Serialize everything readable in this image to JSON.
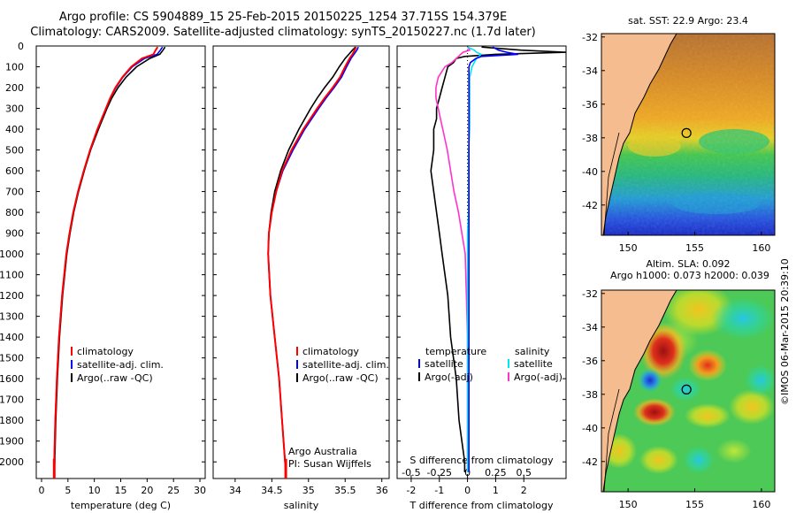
{
  "header": {
    "title_line1": "Argo profile: CS 5904889_15 25-Feb-2015 20150225_1254 37.715S 154.379E",
    "title_line2": "Climatology: CARS2009. Satellite-adjusted climatology: synTS_20150227.nc (1.7d later)"
  },
  "colors": {
    "climatology": "#ff0000",
    "satellite": "#0000ff",
    "argo": "#000000",
    "sat_sal": "#00e5ee",
    "argo_sal": "#ff33cc",
    "land": "#f5bc8f"
  },
  "chart_data": [
    {
      "type": "line",
      "name": "temperature-profile",
      "xlabel": "temperature (deg C)",
      "ylabel": "",
      "xlim": [
        -1,
        31
      ],
      "ylim": [
        2080,
        0
      ],
      "xticks": [
        "0",
        "5",
        "10",
        "15",
        "20",
        "25",
        "30"
      ],
      "yticks": [
        "0",
        "100",
        "200",
        "300",
        "400",
        "500",
        "600",
        "700",
        "800",
        "900",
        "1000",
        "1100",
        "1200",
        "1300",
        "1400",
        "1500",
        "1600",
        "1700",
        "1800",
        "1900",
        "2000"
      ],
      "legend": [
        "climatology",
        "satellite-adj. clim.",
        "Argo(..raw -QC)"
      ],
      "depth": [
        5,
        20,
        40,
        60,
        100,
        150,
        200,
        250,
        300,
        400,
        500,
        600,
        700,
        800,
        900,
        1000,
        1200,
        1400,
        1600,
        1800,
        2000,
        2050
      ],
      "series": [
        {
          "name": "Argo",
          "values": [
            23.4,
            23.0,
            22.4,
            20.5,
            18.0,
            16.0,
            14.5,
            13.3,
            12.4,
            10.8,
            9.3,
            8.1,
            7.0,
            6.1,
            5.4,
            4.8,
            4.0,
            3.4,
            3.0,
            2.7,
            2.5,
            2.4
          ]
        },
        {
          "name": "satellite-adj. clim.",
          "values": [
            22.9,
            22.5,
            21.9,
            19.5,
            17.2,
            15.4,
            14.1,
            13.0,
            12.2,
            10.6,
            9.2,
            8.0,
            6.9,
            6.0,
            5.3,
            4.7,
            3.9,
            3.3,
            2.9,
            2.6,
            2.4,
            2.4
          ]
        },
        {
          "name": "climatology",
          "values": [
            22.0,
            21.6,
            21.2,
            19.0,
            17.0,
            15.3,
            14.0,
            13.0,
            12.2,
            10.6,
            9.2,
            8.0,
            6.9,
            6.0,
            5.3,
            4.7,
            3.9,
            3.3,
            2.9,
            2.6,
            2.4,
            2.4
          ]
        }
      ]
    },
    {
      "type": "line",
      "name": "salinity-profile",
      "xlabel": "salinity",
      "ylabel": "",
      "xlim": [
        33.7,
        36.1
      ],
      "ylim": [
        2080,
        0
      ],
      "xticks": [
        "34",
        "34.5",
        "35",
        "35.5",
        "36"
      ],
      "legend": [
        "climatology",
        "satellite-adj. clim.",
        "Argo(..raw -QC)"
      ],
      "annotation": [
        "Argo Australia",
        "PI: Susan Wijffels"
      ],
      "depth": [
        5,
        20,
        40,
        60,
        100,
        150,
        200,
        250,
        300,
        400,
        500,
        600,
        700,
        800,
        900,
        1000,
        1200,
        1400,
        1600,
        1800,
        2000,
        2050
      ],
      "series": [
        {
          "name": "Argo",
          "values": [
            35.64,
            35.6,
            35.55,
            35.5,
            35.42,
            35.33,
            35.22,
            35.12,
            35.03,
            34.87,
            34.73,
            34.62,
            34.54,
            34.49,
            34.46,
            34.45,
            34.48,
            34.54,
            34.6,
            34.64,
            34.68,
            34.69
          ]
        },
        {
          "name": "satellite-adj. clim.",
          "values": [
            35.68,
            35.66,
            35.62,
            35.58,
            35.52,
            35.45,
            35.35,
            35.24,
            35.14,
            34.95,
            34.79,
            34.65,
            34.56,
            34.5,
            34.46,
            34.45,
            34.48,
            34.54,
            34.6,
            34.64,
            34.68,
            34.69
          ]
        },
        {
          "name": "climatology",
          "values": [
            35.65,
            35.63,
            35.6,
            35.56,
            35.5,
            35.43,
            35.33,
            35.22,
            35.12,
            34.93,
            34.77,
            34.64,
            34.56,
            34.5,
            34.46,
            34.45,
            34.48,
            34.54,
            34.6,
            34.64,
            34.68,
            34.69
          ]
        }
      ]
    },
    {
      "type": "line",
      "name": "difference-profile",
      "xlabel": "T difference from climatology",
      "top_axis_label": "S difference from climatology",
      "xlim": [
        -2.5,
        3.5
      ],
      "ylim": [
        2080,
        0
      ],
      "xticks": [
        "-2",
        "-1",
        "0",
        "1",
        "2"
      ],
      "top_ticks": [
        "-0.5",
        "-0.25",
        "0",
        "0.25",
        "0.5"
      ],
      "top_tick_values": [
        -2,
        -1,
        0,
        1,
        2
      ],
      "legend_left": {
        "title": "temperature",
        "items": [
          "satellite",
          "Argo(-adj)"
        ]
      },
      "legend_right": {
        "title": "salinity",
        "items": [
          "satellite",
          "Argo(-adj)"
        ]
      },
      "depth": [
        5,
        20,
        30,
        40,
        50,
        60,
        80,
        100,
        150,
        200,
        250,
        300,
        350,
        400,
        500,
        600,
        700,
        800,
        900,
        1000,
        1200,
        1400,
        1600,
        1800,
        2000,
        2050
      ],
      "series": [
        {
          "name": "T satellite",
          "values": [
            0.9,
            1.1,
            1.4,
            1.8,
            0.5,
            0.3,
            0.1,
            0.05,
            0.05,
            0.05,
            0.05,
            0.05,
            0.05,
            0.05,
            0.05,
            0.05,
            0.05,
            0.05,
            0.05,
            0.05,
            0.05,
            0.05,
            0.05,
            0.05,
            0.05,
            0.05
          ]
        },
        {
          "name": "T Argo(-adj)",
          "values": [
            0.5,
            1.9,
            3.5,
            1.0,
            -0.1,
            -0.4,
            -0.5,
            -0.7,
            -0.8,
            -0.9,
            -1.0,
            -1.1,
            -1.1,
            -1.2,
            -1.2,
            -1.3,
            -1.2,
            -1.1,
            -1.0,
            -0.9,
            -0.7,
            -0.6,
            -0.4,
            -0.3,
            -0.1,
            -0.1
          ]
        },
        {
          "name": "S satellite",
          "values": [
            0.0,
            0.06,
            0.08,
            0.12,
            0.1,
            0.08,
            0.06,
            0.04,
            0.02,
            0.02,
            0.02,
            0.02,
            0.02,
            0.02,
            0.01,
            0.01,
            0.01,
            0.01,
            0.0,
            0.0,
            0.0,
            0.0,
            0.0,
            0.0,
            0.0,
            0.0
          ]
        },
        {
          "name": "S Argo(-adj)",
          "values": [
            0.0,
            0.02,
            -0.04,
            -0.06,
            -0.08,
            -0.1,
            -0.14,
            -0.2,
            -0.26,
            -0.28,
            -0.28,
            -0.26,
            -0.24,
            -0.22,
            -0.18,
            -0.15,
            -0.12,
            -0.08,
            -0.05,
            -0.02,
            -0.01,
            0.0,
            0.0,
            0.0,
            0.0,
            0.0
          ]
        }
      ]
    },
    {
      "type": "heatmap",
      "name": "sst-map",
      "title": "sat. SST: 22.9 Argo: 23.4",
      "xlim": [
        148,
        161
      ],
      "ylim": [
        -43.8,
        -31.8
      ],
      "xticks": [
        "150",
        "155",
        "160"
      ],
      "yticks": [
        "-32",
        "-34",
        "-36",
        "-38",
        "-40",
        "-42"
      ],
      "argo_position": {
        "lon": 154.379,
        "lat": -37.715
      }
    },
    {
      "type": "heatmap",
      "name": "sla-map",
      "title_line1": "Altim. SLA: 0.092",
      "title_line2": "Argo h1000: 0.073 h2000: 0.039",
      "xlim": [
        148,
        161
      ],
      "ylim": [
        -43.8,
        -31.8
      ],
      "xticks": [
        "150",
        "155",
        "160"
      ],
      "yticks": [
        "-32",
        "-34",
        "-36",
        "-38",
        "-40",
        "-42"
      ],
      "argo_position": {
        "lon": 154.379,
        "lat": -37.715
      },
      "credit": "©IMOS 06-Mar-2015 20:39:10"
    }
  ]
}
